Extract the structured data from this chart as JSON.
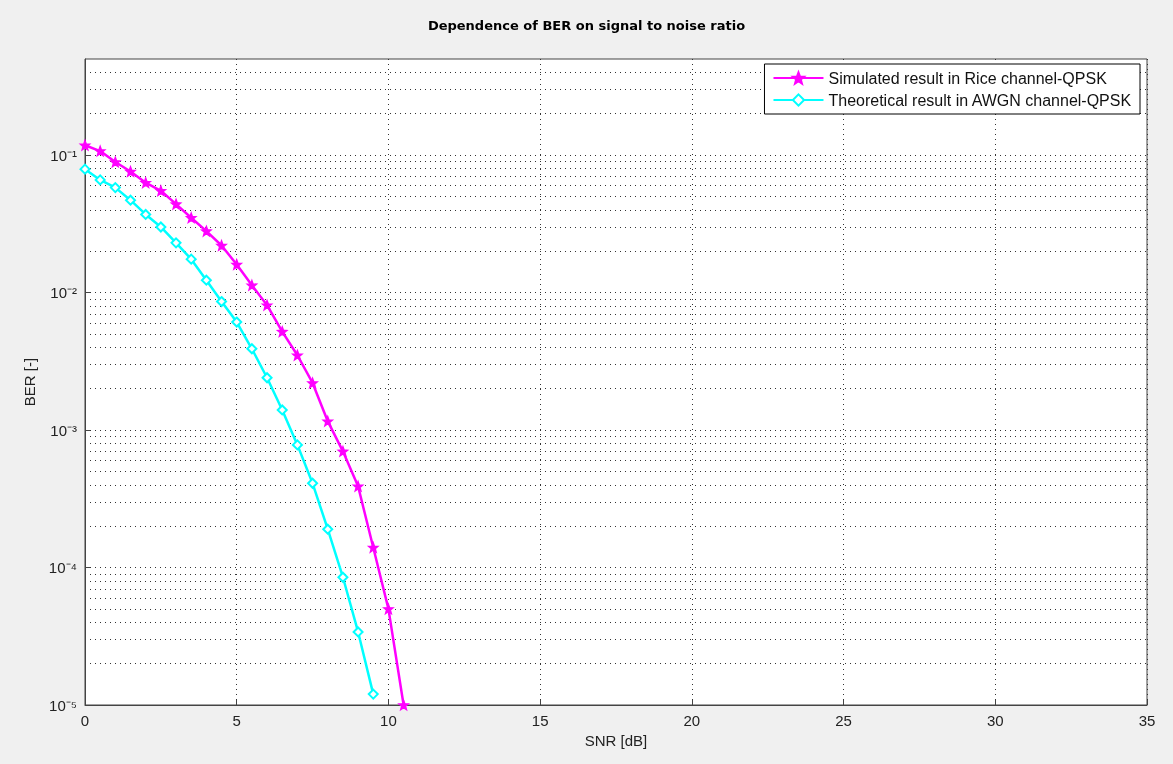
{
  "chart_data": {
    "type": "line",
    "title": "Dependence of BER on signal to noise ratio",
    "xlabel": "SNR [dB]",
    "ylabel": "BER [-]",
    "series": [
      {
        "name": "Simulated result in Rice channel-QPSK",
        "color": "#ff00ff",
        "marker": "star",
        "x": [
          0,
          0.5,
          1,
          1.5,
          2,
          2.5,
          3,
          3.5,
          4,
          4.5,
          5,
          5.5,
          6,
          6.5,
          7,
          7.5,
          8,
          8.5,
          9,
          9.5,
          10,
          10.5
        ],
        "values": [
          0.118,
          0.107,
          0.089,
          0.076,
          0.063,
          0.055,
          0.044,
          0.035,
          0.028,
          0.022,
          0.016,
          0.0113,
          0.0081,
          0.0052,
          0.0035,
          0.0022,
          0.00116,
          0.0007,
          0.00039,
          0.00014,
          5e-05,
          1e-05
        ]
      },
      {
        "name": "Theoretical result in AWGN channel-QPSK",
        "color": "#00ffff",
        "marker": "diamond",
        "x": [
          0,
          0.5,
          1,
          1.5,
          2,
          2.5,
          3,
          3.5,
          4,
          4.5,
          5,
          5.5,
          6,
          6.5,
          7,
          7.5,
          8,
          8.5,
          9,
          9.5
        ],
        "values": [
          0.079,
          0.066,
          0.058,
          0.047,
          0.037,
          0.03,
          0.023,
          0.0175,
          0.0123,
          0.0086,
          0.0061,
          0.0039,
          0.0024,
          0.0014,
          0.00078,
          0.00041,
          0.00019,
          8.5e-05,
          3.4e-05,
          1.2e-05
        ]
      }
    ],
    "xlim": [
      0,
      35
    ],
    "xticks": [
      0,
      5,
      10,
      15,
      20,
      25,
      30,
      35
    ],
    "ylim": [
      1e-05,
      0.5
    ],
    "yticks": [
      {
        "value": 1e-05,
        "label": "10⁻⁵"
      },
      {
        "value": 0.0001,
        "label": "10⁻⁴"
      },
      {
        "value": 0.001,
        "label": "10⁻³"
      },
      {
        "value": 0.01,
        "label": "10⁻²"
      },
      {
        "value": 0.1,
        "label": "10⁻¹"
      }
    ],
    "log": "y",
    "grid": true,
    "legend": "top right",
    "line_style": "solid"
  }
}
